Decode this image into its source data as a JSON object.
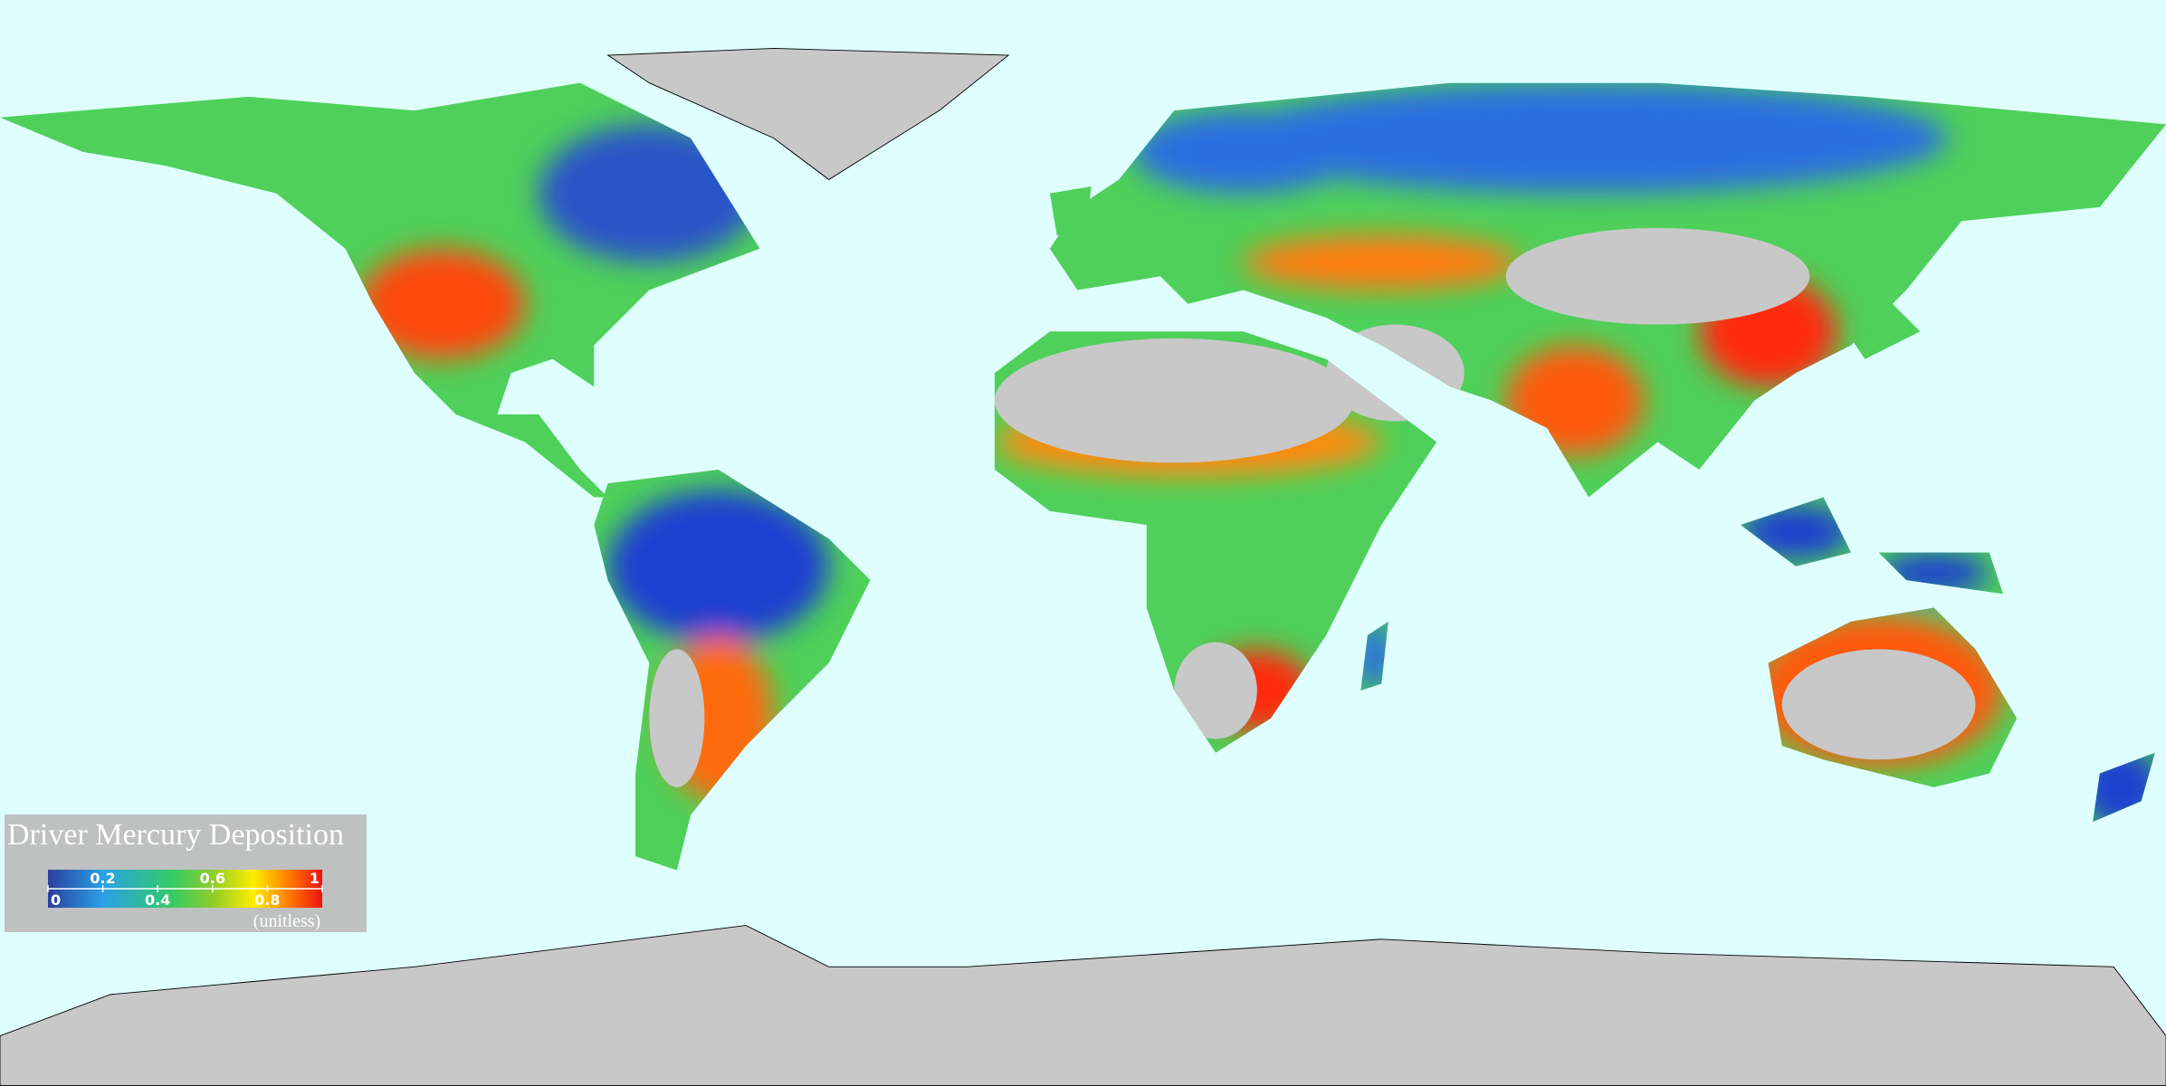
{
  "legend": {
    "title": "Driver Mercury Deposition",
    "ticks": [
      0,
      0.2,
      0.4,
      0.6,
      0.8,
      1
    ],
    "unit": "(unitless)"
  }
}
